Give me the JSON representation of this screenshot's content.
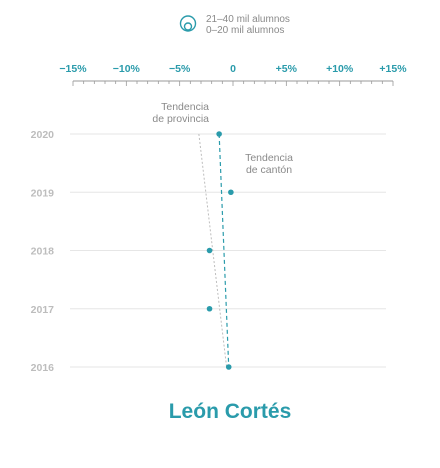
{
  "legend": {
    "items": [
      "21–40 mil alumnos",
      "0–20 mil alumnos"
    ],
    "icon": "nested-circles-icon"
  },
  "chart_data": {
    "type": "scatter",
    "title": "León Cortés",
    "xlim": [
      -15,
      15
    ],
    "x_ticks": [
      -15,
      -10,
      -5,
      0,
      5,
      10,
      15
    ],
    "x_tick_labels": [
      "−15%",
      "−10%",
      "−5%",
      "0",
      "+5%",
      "+10%",
      "+15%"
    ],
    "x_minor_step": 1,
    "categories": [
      "2020",
      "2019",
      "2018",
      "2017",
      "2016"
    ],
    "points": [
      {
        "year": "2020",
        "x": -1.3
      },
      {
        "year": "2019",
        "x": -0.2
      },
      {
        "year": "2018",
        "x": -2.2
      },
      {
        "year": "2017",
        "x": -2.2
      },
      {
        "year": "2016",
        "x": -0.4
      }
    ],
    "trend_canton": {
      "label": [
        "Tendencia",
        "de cantón"
      ],
      "from": {
        "year": "2020",
        "x": -1.3
      },
      "to": {
        "year": "2016",
        "x": -0.4
      }
    },
    "trend_provincia": {
      "label": [
        "Tendencia",
        "de provincia"
      ],
      "from": {
        "year": "2020",
        "x": -3.2
      },
      "to": {
        "year": "2016",
        "x": -0.6
      }
    },
    "grid": true,
    "colors": {
      "accent": "#2a9bab",
      "ytick": "#bdbdbd",
      "grid": "#e6e6e6",
      "axis": "#9a9a9a",
      "trend_provincia": "#bdbdbd",
      "annotation": "#8a8a8a"
    }
  }
}
